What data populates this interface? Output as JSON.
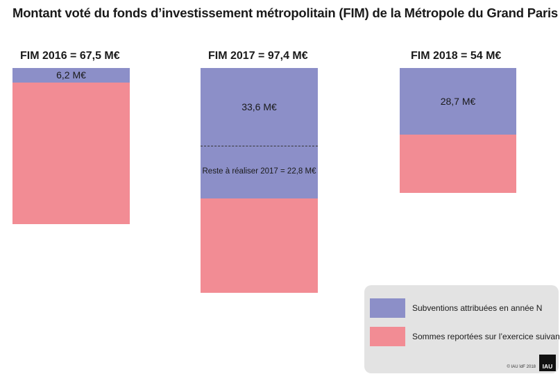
{
  "title": "Montant voté du fonds d’investissement métropolitain (FIM) de la Métropole du Grand Paris",
  "chart_data": {
    "type": "bar",
    "stacked": true,
    "unit": "M€",
    "columns": [
      {
        "title": "FIM 2016 = 67,5 M€",
        "total": 67.5,
        "segments": [
          {
            "series": "Subventions attribuées en année N",
            "value": 6.2,
            "label": "6,2 M€"
          },
          {
            "series": "Sommes reportées sur l’exercice suivant",
            "value": 61.3
          }
        ]
      },
      {
        "title": "FIM 2017 = 97,4 M€",
        "total": 97.4,
        "segments": [
          {
            "series": "Subventions attribuées en année N",
            "value": 33.6,
            "label": "33,6 M€"
          },
          {
            "series": "Subventions attribuées en année N",
            "value": 22.8,
            "label": "Reste à réaliser 2017 = 22,8 M€",
            "dashed_top": true
          },
          {
            "series": "Sommes reportées sur l’exercice suivant",
            "value": 41.0
          }
        ]
      },
      {
        "title": "FIM 2018 = 54 M€",
        "total": 54,
        "segments": [
          {
            "series": "Subventions attribuées en année N",
            "value": 28.7,
            "label": "28,7 M€"
          },
          {
            "series": "Sommes reportées sur l’exercice suivant",
            "value": 25.3
          }
        ]
      }
    ],
    "legend": {
      "placement": "bottom-right",
      "entries": [
        {
          "label": "Subventions attribuées en année N",
          "color": "#8c8fc8"
        },
        {
          "label": "Sommes reportées sur l’exercice suivant",
          "color": "#f28c94"
        }
      ]
    }
  },
  "footer": {
    "copyright": "© IAU îdF 2018",
    "logo_text": "IAU"
  }
}
